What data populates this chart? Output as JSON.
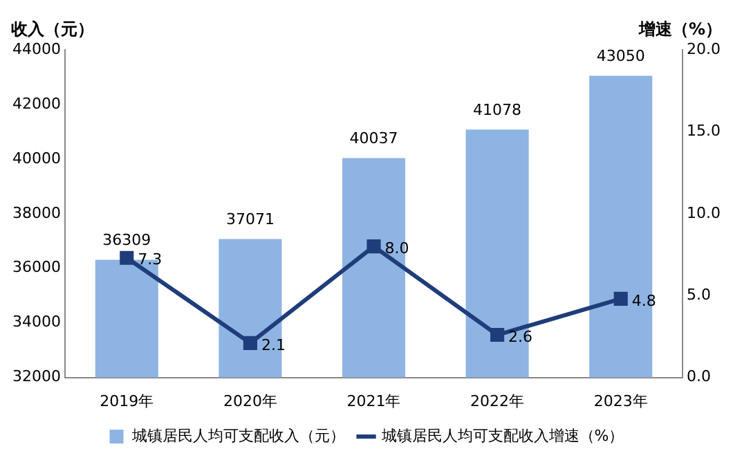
{
  "chart_data": {
    "type": "bar",
    "ylabel": "收入（元）",
    "y2label": "增速（%）",
    "categories": [
      "2019年",
      "2020年",
      "2021年",
      "2022年",
      "2023年"
    ],
    "series": [
      {
        "name": "城镇居民人均可支配收入（元）",
        "color": "#8eb4e3",
        "values": [
          36309,
          37071,
          40037,
          41078,
          43050
        ],
        "value_labels": [
          "36309",
          "37071",
          "40037",
          "41078",
          "43050"
        ]
      },
      {
        "name": "城镇居民人均可支配收入增速（%）",
        "type": "line",
        "axis": "y2",
        "color": "#1f3d7a",
        "values": [
          7.3,
          2.1,
          8.0,
          2.6,
          4.8
        ],
        "value_labels": [
          "7.3",
          "2.1",
          "8.0",
          "2.6",
          "4.8"
        ]
      }
    ],
    "ylim": [
      32000,
      44000
    ],
    "yticks": [
      32000,
      34000,
      36000,
      38000,
      40000,
      42000,
      44000
    ],
    "y2lim": [
      0,
      20
    ],
    "y2ticks": [
      {
        "value": 0,
        "label": "0.0"
      },
      {
        "value": 5,
        "label": "5.0"
      },
      {
        "value": 10,
        "label": "10.0"
      },
      {
        "value": 15,
        "label": "15.0"
      },
      {
        "value": 20,
        "label": "20.0"
      }
    ],
    "grid": false,
    "legend": "bottom",
    "marker": "square",
    "line_style": "solid"
  }
}
